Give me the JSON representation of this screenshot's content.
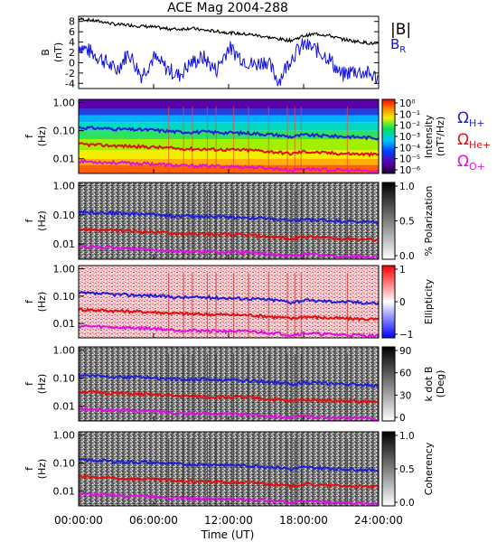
{
  "title": "ACE Mag 2004-288",
  "xaxis": {
    "label": "Time (UT)",
    "ticks": [
      "00:00:00",
      "06:00:00",
      "12:00:00",
      "18:00:00",
      "24:00:00"
    ],
    "tick_hours": [
      0,
      6,
      12,
      18,
      24
    ],
    "range_hours": [
      0,
      24
    ]
  },
  "panel1": {
    "ylabel_line1": "B",
    "ylabel_line2": "(nT)",
    "yticks": [
      "8",
      "6",
      "4",
      "2",
      "0",
      "-2",
      "-4"
    ],
    "ytick_values": [
      8,
      6,
      4,
      2,
      0,
      -2,
      -4
    ],
    "ylim": [
      -5,
      9
    ],
    "legend_b": "|B|",
    "legend_br": "B",
    "legend_br_sub": "R"
  },
  "freq_panels": {
    "ylabel_line1": "f",
    "ylabel_line2": "(Hz)",
    "yticks": [
      "1.00",
      "0.10",
      "0.01"
    ],
    "ytick_values": [
      1.0,
      0.1,
      0.01
    ],
    "ylim": [
      0.003,
      1.3
    ],
    "log_scale": true
  },
  "panels": [
    {
      "id": "intensity",
      "colorbar_label": "Intensity",
      "colorbar_unit": "(nT²/Hz)",
      "colorbar_ticks": [
        "10⁰",
        "10⁻¹",
        "10⁻²",
        "10⁻³",
        "10⁻⁴",
        "10⁻⁵",
        "10⁻⁶"
      ],
      "colormap": "rainbow"
    },
    {
      "id": "polarization",
      "colorbar_label": "% Polarization",
      "colorbar_unit": "",
      "colorbar_ticks": [
        "1.0",
        "0.5",
        "0.0"
      ],
      "colormap": "gray"
    },
    {
      "id": "ellipticity",
      "colorbar_label": "Ellipticity",
      "colorbar_unit": "",
      "colorbar_ticks": [
        "1",
        "0",
        "−1"
      ],
      "colormap": "bwr"
    },
    {
      "id": "kdotb",
      "colorbar_label": "k dot B",
      "colorbar_unit": "(Deg)",
      "colorbar_ticks": [
        "90",
        "60",
        "30",
        "0"
      ],
      "colormap": "gray"
    },
    {
      "id": "coherency",
      "colorbar_label": "Coherency",
      "colorbar_unit": "",
      "colorbar_ticks": [
        "1.0",
        "0.5",
        "0.0"
      ],
      "colormap": "gray"
    }
  ],
  "gyro_legend": [
    {
      "symbol": "Ω",
      "sub": "H+",
      "color": "#1f1fd6"
    },
    {
      "symbol": "Ω",
      "sub": "He+",
      "color": "#e01010"
    },
    {
      "symbol": "Ω",
      "sub": "O+",
      "color": "#e010e0"
    }
  ],
  "colors": {
    "b_total": "#000000",
    "b_r": "#1010e0",
    "omega_h": "#1f1fd6",
    "omega_he": "#e01010",
    "omega_o": "#e010e0"
  },
  "chart_data": {
    "type": "line",
    "series": [
      {
        "name": "|B|",
        "x_hours": [
          0,
          1,
          2,
          3,
          4,
          5,
          6,
          7,
          8,
          9,
          10,
          11,
          12,
          13,
          14,
          15,
          16,
          17,
          18,
          19,
          20,
          21,
          22,
          23,
          24
        ],
        "values": [
          8.5,
          8.2,
          7.9,
          7.4,
          7.3,
          7.1,
          6.9,
          6.6,
          6.5,
          6.7,
          6.3,
          6.1,
          5.8,
          5.6,
          5.4,
          5.0,
          4.6,
          4.3,
          5.2,
          5.6,
          5.3,
          4.6,
          4.2,
          3.9,
          3.5
        ]
      },
      {
        "name": "B_R",
        "x_hours": [
          0,
          1,
          2,
          3,
          4,
          5,
          6,
          7,
          8,
          9,
          10,
          11,
          12,
          13,
          14,
          15,
          16,
          17,
          18,
          19,
          20,
          21,
          22,
          23,
          24
        ],
        "values": [
          3.5,
          2.0,
          0.5,
          -1.5,
          2.0,
          -2.5,
          1.0,
          -1.0,
          -2.5,
          0.0,
          1.0,
          -1.5,
          3.0,
          1.0,
          -0.5,
          0.5,
          -3.5,
          1.0,
          3.5,
          2.5,
          1.0,
          -2.5,
          -1.5,
          -2.0,
          -3.0
        ]
      },
      {
        "name": "Ω_H+",
        "x_hours": [
          0,
          2,
          4,
          6,
          8,
          10,
          12,
          14,
          16,
          17,
          18,
          20,
          22,
          24
        ],
        "values": [
          0.13,
          0.12,
          0.11,
          0.105,
          0.09,
          0.09,
          0.085,
          0.08,
          0.07,
          0.06,
          0.07,
          0.065,
          0.06,
          0.055
        ]
      },
      {
        "name": "Ω_He+",
        "x_hours": [
          0,
          2,
          4,
          6,
          8,
          10,
          12,
          14,
          16,
          17,
          18,
          20,
          22,
          24
        ],
        "values": [
          0.033,
          0.03,
          0.028,
          0.026,
          0.023,
          0.022,
          0.021,
          0.02,
          0.017,
          0.015,
          0.018,
          0.016,
          0.015,
          0.014
        ]
      },
      {
        "name": "Ω_O+",
        "x_hours": [
          0,
          2,
          4,
          6,
          8,
          10,
          12,
          14,
          16,
          17,
          18,
          20,
          22,
          24
        ],
        "values": [
          0.0082,
          0.0075,
          0.007,
          0.0066,
          0.0057,
          0.0055,
          0.0053,
          0.005,
          0.0044,
          0.0038,
          0.0045,
          0.004,
          0.0038,
          0.0035
        ]
      }
    ]
  }
}
